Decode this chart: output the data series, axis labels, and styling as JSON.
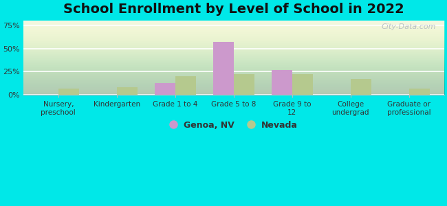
{
  "title": "School Enrollment by Level of School in 2022",
  "categories": [
    "Nursery,\npreschool",
    "Kindergarten",
    "Grade 1 to 4",
    "Grade 5 to 8",
    "Grade 9 to\n12",
    "College\nundergrad",
    "Graduate or\nprofessional"
  ],
  "genoa_values": [
    0,
    0,
    13,
    57,
    27,
    0,
    0
  ],
  "nevada_values": [
    7,
    8,
    20,
    22,
    22,
    17,
    7
  ],
  "genoa_color": "#cc99cc",
  "nevada_color": "#b5c98e",
  "ylim": [
    0,
    80
  ],
  "yticks": [
    0,
    25,
    50,
    75
  ],
  "ytick_labels": [
    "0%",
    "25%",
    "50%",
    "75%"
  ],
  "legend_labels": [
    "Genoa, NV",
    "Nevada"
  ],
  "bar_width": 0.35,
  "background_outer": "#00e8e8",
  "background_inner": "#e8f0d8",
  "watermark": "City-Data.com",
  "title_fontsize": 14,
  "axis_label_fontsize": 8
}
